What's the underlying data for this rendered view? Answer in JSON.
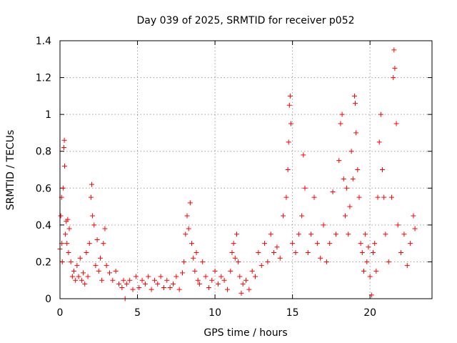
{
  "chart_data": {
    "type": "scatter",
    "title": "Day 039 of 2025, SRMTID for receiver p052",
    "xlabel": "GPS time / hours",
    "ylabel": "SRMTID / TECUs",
    "xlim": [
      0,
      24
    ],
    "ylim": [
      0,
      1.4
    ],
    "x_ticks": [
      0,
      5,
      10,
      15,
      20
    ],
    "x_tick_labels": [
      "0",
      "5",
      "10",
      "15",
      "20"
    ],
    "y_ticks": [
      0,
      0.2,
      0.4,
      0.6,
      0.8,
      1.0,
      1.2,
      1.4
    ],
    "y_tick_labels": [
      "0",
      "0.2",
      "0.4",
      "0.6",
      "0.8",
      "1",
      "1.2",
      "1.4"
    ],
    "grid": true,
    "marker": "+",
    "series": [
      {
        "name": "SRMTID",
        "color": "#ff0000",
        "points": [
          [
            0.0,
            0.27
          ],
          [
            0.05,
            0.45
          ],
          [
            0.1,
            0.55
          ],
          [
            0.12,
            0.3
          ],
          [
            0.15,
            0.2
          ],
          [
            0.2,
            0.6
          ],
          [
            0.25,
            0.82
          ],
          [
            0.28,
            0.86
          ],
          [
            0.3,
            0.72
          ],
          [
            0.35,
            0.35
          ],
          [
            0.4,
            0.42
          ],
          [
            0.45,
            0.3
          ],
          [
            0.5,
            0.43
          ],
          [
            0.55,
            0.25
          ],
          [
            0.6,
            0.38
          ],
          [
            0.7,
            0.2
          ],
          [
            0.8,
            0.12
          ],
          [
            0.9,
            0.15
          ],
          [
            1.0,
            0.1
          ],
          [
            1.1,
            0.18
          ],
          [
            1.2,
            0.12
          ],
          [
            1.3,
            0.22
          ],
          [
            1.4,
            0.1
          ],
          [
            1.5,
            0.14
          ],
          [
            1.6,
            0.08
          ],
          [
            1.7,
            0.25
          ],
          [
            1.8,
            0.12
          ],
          [
            1.9,
            0.3
          ],
          [
            2.0,
            0.55
          ],
          [
            2.05,
            0.62
          ],
          [
            2.1,
            0.45
          ],
          [
            2.2,
            0.4
          ],
          [
            2.3,
            0.18
          ],
          [
            2.4,
            0.32
          ],
          [
            2.5,
            0.15
          ],
          [
            2.6,
            0.22
          ],
          [
            2.7,
            0.1
          ],
          [
            2.8,
            0.3
          ],
          [
            2.9,
            0.38
          ],
          [
            3.0,
            0.18
          ],
          [
            3.2,
            0.14
          ],
          [
            3.4,
            0.1
          ],
          [
            3.6,
            0.15
          ],
          [
            3.8,
            0.08
          ],
          [
            4.0,
            0.06
          ],
          [
            4.1,
            0.1
          ],
          [
            4.2,
            0.0
          ],
          [
            4.3,
            0.08
          ],
          [
            4.5,
            0.1
          ],
          [
            4.7,
            0.05
          ],
          [
            4.9,
            0.12
          ],
          [
            5.1,
            0.06
          ],
          [
            5.3,
            0.1
          ],
          [
            5.5,
            0.08
          ],
          [
            5.7,
            0.12
          ],
          [
            5.9,
            0.05
          ],
          [
            6.1,
            0.1
          ],
          [
            6.3,
            0.08
          ],
          [
            6.5,
            0.12
          ],
          [
            6.7,
            0.06
          ],
          [
            6.9,
            0.1
          ],
          [
            7.1,
            0.06
          ],
          [
            7.3,
            0.08
          ],
          [
            7.5,
            0.12
          ],
          [
            7.7,
            0.05
          ],
          [
            7.9,
            0.14
          ],
          [
            8.0,
            0.2
          ],
          [
            8.1,
            0.35
          ],
          [
            8.2,
            0.45
          ],
          [
            8.3,
            0.38
          ],
          [
            8.4,
            0.52
          ],
          [
            8.5,
            0.3
          ],
          [
            8.6,
            0.22
          ],
          [
            8.7,
            0.15
          ],
          [
            8.8,
            0.25
          ],
          [
            8.9,
            0.1
          ],
          [
            9.0,
            0.08
          ],
          [
            9.2,
            0.2
          ],
          [
            9.4,
            0.12
          ],
          [
            9.6,
            0.06
          ],
          [
            9.8,
            0.1
          ],
          [
            10.0,
            0.15
          ],
          [
            10.2,
            0.08
          ],
          [
            10.4,
            0.12
          ],
          [
            10.6,
            0.1
          ],
          [
            10.8,
            0.05
          ],
          [
            11.0,
            0.15
          ],
          [
            11.1,
            0.25
          ],
          [
            11.2,
            0.3
          ],
          [
            11.3,
            0.22
          ],
          [
            11.4,
            0.35
          ],
          [
            11.5,
            0.2
          ],
          [
            11.6,
            0.12
          ],
          [
            11.7,
            0.03
          ],
          [
            11.8,
            0.08
          ],
          [
            12.0,
            0.1
          ],
          [
            12.2,
            0.05
          ],
          [
            12.4,
            0.15
          ],
          [
            12.6,
            0.12
          ],
          [
            12.8,
            0.25
          ],
          [
            13.0,
            0.18
          ],
          [
            13.2,
            0.3
          ],
          [
            13.4,
            0.2
          ],
          [
            13.6,
            0.35
          ],
          [
            13.8,
            0.25
          ],
          [
            14.0,
            0.28
          ],
          [
            14.2,
            0.22
          ],
          [
            14.4,
            0.45
          ],
          [
            14.6,
            0.55
          ],
          [
            14.7,
            0.7
          ],
          [
            14.75,
            0.85
          ],
          [
            14.8,
            1.05
          ],
          [
            14.85,
            1.1
          ],
          [
            14.9,
            0.95
          ],
          [
            15.0,
            0.3
          ],
          [
            15.2,
            0.25
          ],
          [
            15.4,
            0.35
          ],
          [
            15.6,
            0.45
          ],
          [
            15.7,
            0.78
          ],
          [
            15.8,
            0.6
          ],
          [
            16.0,
            0.25
          ],
          [
            16.2,
            0.35
          ],
          [
            16.4,
            0.55
          ],
          [
            16.6,
            0.3
          ],
          [
            16.8,
            0.22
          ],
          [
            17.0,
            0.4
          ],
          [
            17.2,
            0.2
          ],
          [
            17.4,
            0.3
          ],
          [
            17.6,
            0.58
          ],
          [
            17.8,
            0.35
          ],
          [
            18.0,
            0.75
          ],
          [
            18.1,
            0.95
          ],
          [
            18.2,
            1.0
          ],
          [
            18.3,
            0.65
          ],
          [
            18.4,
            0.45
          ],
          [
            18.5,
            0.6
          ],
          [
            18.6,
            0.35
          ],
          [
            18.7,
            0.5
          ],
          [
            18.8,
            0.8
          ],
          [
            18.9,
            0.65
          ],
          [
            19.0,
            1.1
          ],
          [
            19.05,
            1.06
          ],
          [
            19.1,
            0.9
          ],
          [
            19.2,
            0.7
          ],
          [
            19.3,
            0.55
          ],
          [
            19.4,
            0.3
          ],
          [
            19.5,
            0.25
          ],
          [
            19.6,
            0.15
          ],
          [
            19.7,
            0.35
          ],
          [
            19.8,
            0.2
          ],
          [
            19.9,
            0.28
          ],
          [
            20.0,
            0.12
          ],
          [
            20.1,
            0.02
          ],
          [
            20.2,
            0.25
          ],
          [
            20.3,
            0.3
          ],
          [
            20.4,
            0.15
          ],
          [
            20.5,
            0.55
          ],
          [
            20.6,
            0.85
          ],
          [
            20.7,
            1.0
          ],
          [
            20.8,
            0.7
          ],
          [
            20.9,
            0.55
          ],
          [
            21.0,
            0.35
          ],
          [
            21.2,
            0.2
          ],
          [
            21.4,
            0.55
          ],
          [
            21.5,
            1.2
          ],
          [
            21.55,
            1.35
          ],
          [
            21.6,
            1.25
          ],
          [
            21.7,
            0.95
          ],
          [
            21.8,
            0.4
          ],
          [
            22.0,
            0.25
          ],
          [
            22.2,
            0.35
          ],
          [
            22.4,
            0.18
          ],
          [
            22.6,
            0.3
          ],
          [
            22.8,
            0.45
          ],
          [
            22.9,
            0.38
          ]
        ]
      }
    ]
  }
}
